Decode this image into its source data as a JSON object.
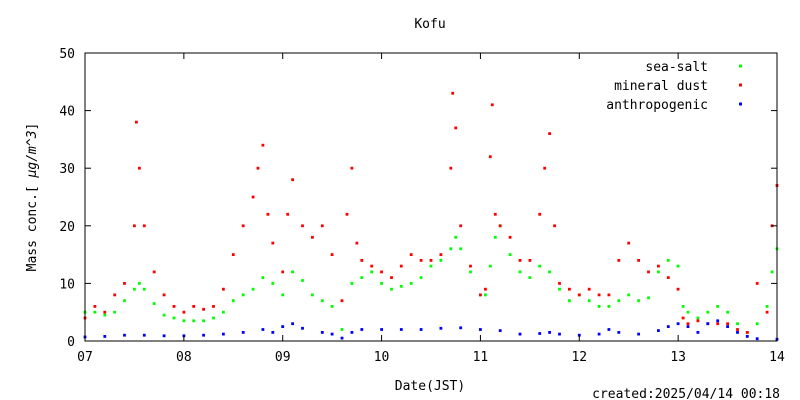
{
  "chart_data": {
    "type": "scatter",
    "title": "Kofu",
    "xlabel": "Date(JST)",
    "ylabel_parts": [
      "Mass conc.[ ",
      "μg/m^3",
      "]"
    ],
    "x_ticks": [
      "07",
      "08",
      "09",
      "10",
      "11",
      "12",
      "13",
      "14"
    ],
    "xlim": [
      7,
      14
    ],
    "ylim": [
      0,
      50
    ],
    "y_ticks": [
      0,
      10,
      20,
      30,
      40,
      50
    ],
    "grid": false,
    "legend_position": "top-right",
    "created_label": "created:2025/04/14 00:18",
    "series": [
      {
        "name": "sea-salt",
        "color": "#00ff00",
        "points": [
          [
            7.0,
            5
          ],
          [
            7.1,
            5
          ],
          [
            7.2,
            4.5
          ],
          [
            7.3,
            5
          ],
          [
            7.4,
            7
          ],
          [
            7.5,
            9
          ],
          [
            7.55,
            10
          ],
          [
            7.6,
            9
          ],
          [
            7.7,
            6.5
          ],
          [
            7.8,
            4.5
          ],
          [
            7.9,
            4
          ],
          [
            8.0,
            3.5
          ],
          [
            8.1,
            3.5
          ],
          [
            8.2,
            3.5
          ],
          [
            8.3,
            4
          ],
          [
            8.4,
            5
          ],
          [
            8.5,
            7
          ],
          [
            8.6,
            8
          ],
          [
            8.7,
            9
          ],
          [
            8.8,
            11
          ],
          [
            8.9,
            10
          ],
          [
            9.0,
            8
          ],
          [
            9.1,
            12
          ],
          [
            9.2,
            10.5
          ],
          [
            9.3,
            8
          ],
          [
            9.4,
            7
          ],
          [
            9.5,
            6
          ],
          [
            9.6,
            2
          ],
          [
            9.7,
            10
          ],
          [
            9.8,
            11
          ],
          [
            9.9,
            12
          ],
          [
            10.0,
            10
          ],
          [
            10.1,
            9
          ],
          [
            10.2,
            9.5
          ],
          [
            10.3,
            10
          ],
          [
            10.4,
            11
          ],
          [
            10.5,
            13
          ],
          [
            10.6,
            14
          ],
          [
            10.7,
            16
          ],
          [
            10.75,
            18
          ],
          [
            10.8,
            16
          ],
          [
            10.9,
            12
          ],
          [
            11.0,
            8
          ],
          [
            11.05,
            8
          ],
          [
            11.1,
            13
          ],
          [
            11.15,
            18
          ],
          [
            11.2,
            20
          ],
          [
            11.3,
            15
          ],
          [
            11.4,
            12
          ],
          [
            11.5,
            11
          ],
          [
            11.6,
            13
          ],
          [
            11.7,
            12
          ],
          [
            11.8,
            9
          ],
          [
            11.9,
            7
          ],
          [
            12.0,
            8
          ],
          [
            12.1,
            7
          ],
          [
            12.2,
            6
          ],
          [
            12.3,
            6
          ],
          [
            12.4,
            7
          ],
          [
            12.5,
            8
          ],
          [
            12.6,
            7
          ],
          [
            12.7,
            7.5
          ],
          [
            12.8,
            12
          ],
          [
            12.9,
            14
          ],
          [
            13.0,
            13
          ],
          [
            13.05,
            6
          ],
          [
            13.1,
            5
          ],
          [
            13.2,
            4
          ],
          [
            13.3,
            5
          ],
          [
            13.4,
            6
          ],
          [
            13.5,
            5
          ],
          [
            13.6,
            3
          ],
          [
            13.7,
            1.5
          ],
          [
            13.8,
            3
          ],
          [
            13.9,
            6
          ],
          [
            13.95,
            12
          ],
          [
            14.0,
            16
          ]
        ]
      },
      {
        "name": "mineral dust",
        "color": "#ff0000",
        "points": [
          [
            7.0,
            4
          ],
          [
            7.1,
            6
          ],
          [
            7.2,
            5
          ],
          [
            7.3,
            8
          ],
          [
            7.4,
            10
          ],
          [
            7.5,
            20
          ],
          [
            7.52,
            38
          ],
          [
            7.55,
            30
          ],
          [
            7.6,
            20
          ],
          [
            7.7,
            12
          ],
          [
            7.8,
            8
          ],
          [
            7.9,
            6
          ],
          [
            8.0,
            5
          ],
          [
            8.1,
            6
          ],
          [
            8.2,
            5.5
          ],
          [
            8.3,
            6
          ],
          [
            8.4,
            9
          ],
          [
            8.5,
            15
          ],
          [
            8.6,
            20
          ],
          [
            8.7,
            25
          ],
          [
            8.75,
            30
          ],
          [
            8.8,
            34
          ],
          [
            8.85,
            22
          ],
          [
            8.9,
            17
          ],
          [
            9.0,
            12
          ],
          [
            9.05,
            22
          ],
          [
            9.1,
            28
          ],
          [
            9.2,
            20
          ],
          [
            9.3,
            18
          ],
          [
            9.4,
            20
          ],
          [
            9.5,
            15
          ],
          [
            9.6,
            7
          ],
          [
            9.65,
            22
          ],
          [
            9.7,
            30
          ],
          [
            9.75,
            17
          ],
          [
            9.8,
            14
          ],
          [
            9.9,
            13
          ],
          [
            10.0,
            12
          ],
          [
            10.1,
            11
          ],
          [
            10.2,
            13
          ],
          [
            10.3,
            15
          ],
          [
            10.4,
            14
          ],
          [
            10.5,
            14
          ],
          [
            10.6,
            15
          ],
          [
            10.7,
            30
          ],
          [
            10.72,
            43
          ],
          [
            10.75,
            37
          ],
          [
            10.8,
            20
          ],
          [
            10.9,
            13
          ],
          [
            11.0,
            8
          ],
          [
            11.05,
            9
          ],
          [
            11.1,
            32
          ],
          [
            11.12,
            41
          ],
          [
            11.15,
            22
          ],
          [
            11.2,
            20
          ],
          [
            11.3,
            18
          ],
          [
            11.4,
            14
          ],
          [
            11.5,
            14
          ],
          [
            11.6,
            22
          ],
          [
            11.65,
            30
          ],
          [
            11.7,
            36
          ],
          [
            11.75,
            20
          ],
          [
            11.8,
            10
          ],
          [
            11.9,
            9
          ],
          [
            12.0,
            8
          ],
          [
            12.1,
            9
          ],
          [
            12.2,
            8
          ],
          [
            12.3,
            8
          ],
          [
            12.4,
            14
          ],
          [
            12.5,
            17
          ],
          [
            12.6,
            14
          ],
          [
            12.7,
            12
          ],
          [
            12.8,
            13
          ],
          [
            12.9,
            11
          ],
          [
            13.0,
            9
          ],
          [
            13.05,
            4
          ],
          [
            13.1,
            3
          ],
          [
            13.2,
            3.5
          ],
          [
            13.3,
            3
          ],
          [
            13.4,
            3
          ],
          [
            13.5,
            3
          ],
          [
            13.6,
            2
          ],
          [
            13.7,
            1.5
          ],
          [
            13.8,
            10
          ],
          [
            13.9,
            5
          ],
          [
            13.95,
            20
          ],
          [
            14.0,
            27
          ]
        ]
      },
      {
        "name": "anthropogenic",
        "color": "#0000ff",
        "points": [
          [
            7.0,
            0.7
          ],
          [
            7.2,
            0.8
          ],
          [
            7.4,
            1.0
          ],
          [
            7.6,
            1.0
          ],
          [
            7.8,
            0.9
          ],
          [
            8.0,
            0.9
          ],
          [
            8.2,
            1.0
          ],
          [
            8.4,
            1.2
          ],
          [
            8.6,
            1.5
          ],
          [
            8.8,
            2.0
          ],
          [
            8.9,
            1.5
          ],
          [
            9.0,
            2.5
          ],
          [
            9.1,
            3.0
          ],
          [
            9.2,
            2.2
          ],
          [
            9.4,
            1.5
          ],
          [
            9.5,
            1.2
          ],
          [
            9.6,
            0.5
          ],
          [
            9.7,
            1.5
          ],
          [
            9.8,
            2.0
          ],
          [
            10.0,
            2.0
          ],
          [
            10.2,
            2.0
          ],
          [
            10.4,
            2.0
          ],
          [
            10.6,
            2.2
          ],
          [
            10.8,
            2.3
          ],
          [
            11.0,
            2.0
          ],
          [
            11.2,
            1.8
          ],
          [
            11.4,
            1.2
          ],
          [
            11.6,
            1.3
          ],
          [
            11.7,
            1.5
          ],
          [
            11.8,
            1.2
          ],
          [
            12.0,
            1.0
          ],
          [
            12.2,
            1.2
          ],
          [
            12.3,
            2.0
          ],
          [
            12.4,
            1.5
          ],
          [
            12.6,
            1.2
          ],
          [
            12.8,
            1.8
          ],
          [
            12.9,
            2.5
          ],
          [
            13.0,
            3.0
          ],
          [
            13.1,
            2.5
          ],
          [
            13.2,
            1.5
          ],
          [
            13.3,
            3.0
          ],
          [
            13.4,
            3.5
          ],
          [
            13.5,
            2.5
          ],
          [
            13.6,
            1.5
          ],
          [
            13.7,
            0.8
          ],
          [
            13.8,
            0.4
          ],
          [
            14.0,
            0.3
          ]
        ]
      }
    ]
  }
}
